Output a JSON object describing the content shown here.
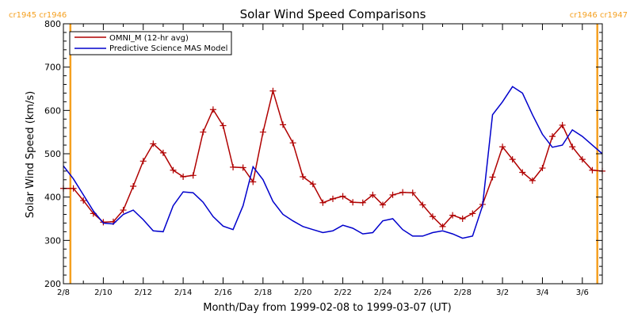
{
  "chart_data": {
    "type": "line",
    "title": "Solar Wind Speed Comparisons",
    "xlabel": "Month/Day from 1999-02-08 to 1999-03-07 (UT)",
    "ylabel": "Solar Wind Speed (km/s)",
    "ylim": [
      200,
      800
    ],
    "yticks": [
      "200",
      "300",
      "400",
      "500",
      "600",
      "700",
      "800"
    ],
    "xlim": [
      0,
      27
    ],
    "xticks": [
      {
        "x": 0,
        "label": "2/8"
      },
      {
        "x": 2,
        "label": "2/10"
      },
      {
        "x": 4,
        "label": "2/12"
      },
      {
        "x": 6,
        "label": "2/14"
      },
      {
        "x": 8,
        "label": "2/16"
      },
      {
        "x": 10,
        "label": "2/18"
      },
      {
        "x": 12,
        "label": "2/20"
      },
      {
        "x": 14,
        "label": "2/22"
      },
      {
        "x": 16,
        "label": "2/24"
      },
      {
        "x": 18,
        "label": "2/26"
      },
      {
        "x": 20,
        "label": "2/28"
      },
      {
        "x": 22,
        "label": "3/2"
      },
      {
        "x": 24,
        "label": "3/4"
      },
      {
        "x": 26,
        "label": "3/6"
      }
    ],
    "carrington": {
      "left_label": "cr1945 cr1946",
      "right_label": "cr1946 cr1947",
      "left_x": 0.35,
      "right_x": 26.75,
      "color": "#f5a020"
    },
    "legend_position": "top-left",
    "series": [
      {
        "name": "OMNI_M (12-hr avg)",
        "color": "#b00000",
        "markers": true,
        "x": [
          0,
          0.5,
          1,
          1.5,
          2,
          2.5,
          3,
          3.5,
          4,
          4.5,
          5,
          5.5,
          6,
          6.5,
          7,
          7.5,
          8,
          8.5,
          9,
          9.5,
          10,
          10.5,
          11,
          11.5,
          12,
          12.5,
          13,
          13.5,
          14,
          14.5,
          15,
          15.5,
          16,
          16.5,
          17,
          17.5,
          18,
          18.5,
          19,
          19.5,
          20,
          20.5,
          21,
          21.5,
          22,
          22.5,
          23,
          23.5,
          24,
          24.5,
          25,
          25.5,
          26,
          26.5,
          27
        ],
        "values": [
          420,
          420,
          392,
          362,
          342,
          343,
          370,
          425,
          483,
          523,
          502,
          462,
          447,
          450,
          550,
          602,
          565,
          469,
          468,
          435,
          550,
          645,
          567,
          525,
          447,
          430,
          387,
          396,
          402,
          388,
          387,
          405,
          382,
          405,
          411,
          410,
          382,
          355,
          332,
          358,
          350,
          362,
          383,
          446,
          516,
          487,
          457,
          438,
          467,
          540,
          566,
          516,
          487,
          462,
          460
        ]
      },
      {
        "name": "Predictive Science MAS Model",
        "color": "#0000cc",
        "markers": false,
        "x": [
          0,
          0.5,
          1,
          1.5,
          2,
          2.5,
          3,
          3.5,
          4,
          4.5,
          5,
          5.5,
          6,
          6.5,
          7,
          7.5,
          8,
          8.5,
          9,
          9.5,
          10,
          10.5,
          11,
          11.5,
          12,
          12.5,
          13,
          13.5,
          14,
          14.5,
          15,
          15.5,
          16,
          16.5,
          17,
          17.5,
          18,
          18.5,
          19,
          19.5,
          20,
          20.5,
          21,
          21.5,
          22,
          22.5,
          23,
          23.5,
          24,
          24.5,
          25,
          25.5,
          26,
          26.5,
          27
        ],
        "values": [
          472,
          442,
          405,
          368,
          340,
          338,
          360,
          370,
          348,
          322,
          320,
          380,
          412,
          410,
          388,
          355,
          333,
          325,
          380,
          470,
          440,
          390,
          360,
          345,
          332,
          325,
          318,
          322,
          335,
          328,
          315,
          318,
          345,
          350,
          325,
          310,
          310,
          318,
          322,
          315,
          305,
          310,
          380,
          590,
          620,
          655,
          640,
          590,
          545,
          515,
          520,
          555,
          540,
          520,
          500
        ]
      }
    ]
  }
}
